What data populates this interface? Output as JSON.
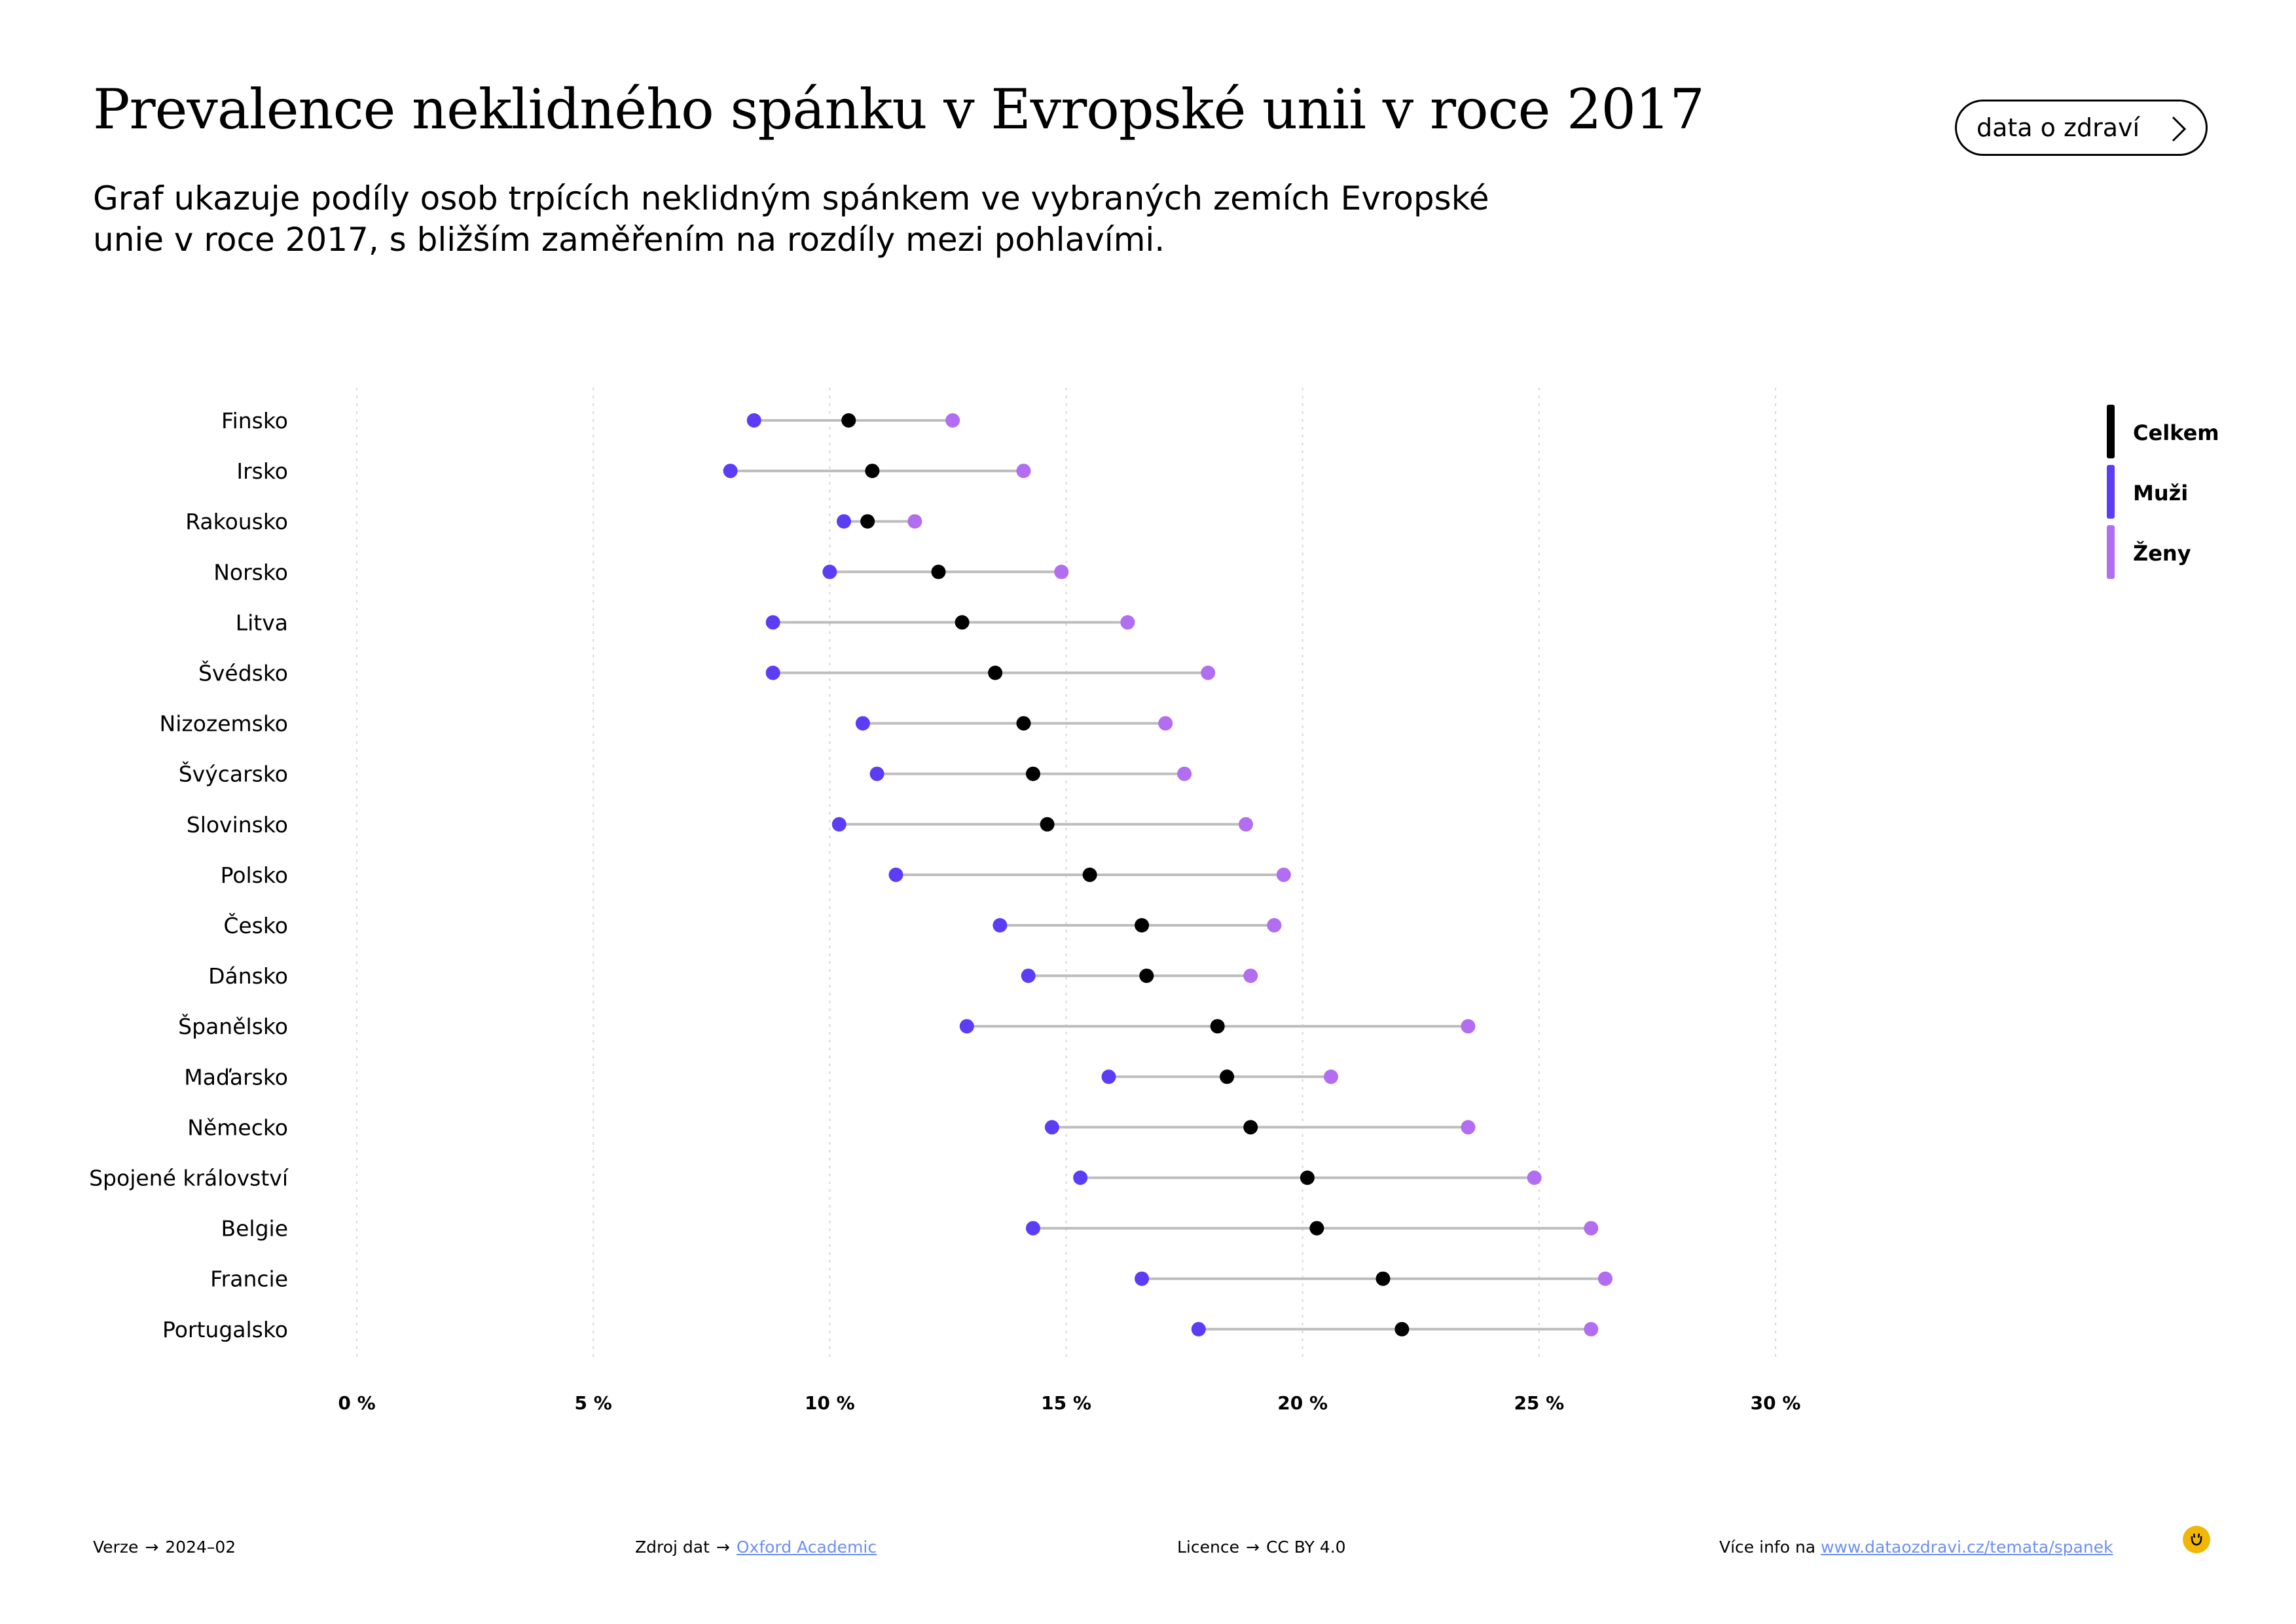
{
  "header": {
    "title": "Prevalence neklidného spánku v Evropské unii v roce 2017",
    "subtitle": "Graf ukazuje podíly osob trpících neklidným spánkem ve vybraných zemích Evropské unie v roce 2017, s bližším zaměřením na rozdíly mezi pohlavími.",
    "button_label": "data o zdraví"
  },
  "chart_data": {
    "type": "scatter",
    "subtype": "dumbbell",
    "title": "Prevalence neklidného spánku v Evropské unii v roce 2017",
    "xlabel": "",
    "ylabel": "",
    "xlim": [
      0,
      30
    ],
    "xticks": [
      0,
      5,
      10,
      15,
      20,
      25,
      30
    ],
    "xtick_labels": [
      "0 %",
      "5 %",
      "10 %",
      "15 %",
      "20 %",
      "25 %",
      "30 %"
    ],
    "grid": "vertical dotted",
    "legend_position": "top-right",
    "categories": [
      "Finsko",
      "Irsko",
      "Rakousko",
      "Norsko",
      "Litva",
      "Švédsko",
      "Nizozemsko",
      "Švýcarsko",
      "Slovinsko",
      "Polsko",
      "Česko",
      "Dánsko",
      "Španělsko",
      "Maďarsko",
      "Německo",
      "Spojené království",
      "Belgie",
      "Francie",
      "Portugalsko"
    ],
    "series": [
      {
        "name": "Celkem",
        "color": "#000000",
        "values": [
          10.4,
          10.9,
          10.8,
          12.3,
          12.8,
          13.5,
          14.1,
          14.3,
          14.6,
          15.5,
          16.6,
          16.7,
          18.2,
          18.4,
          18.9,
          20.1,
          20.3,
          21.7,
          22.1
        ]
      },
      {
        "name": "Muži",
        "color": "#5b3df5",
        "values": [
          8.4,
          7.9,
          10.3,
          10.0,
          8.8,
          8.8,
          10.7,
          11.0,
          10.2,
          11.4,
          13.6,
          14.2,
          12.9,
          15.9,
          14.7,
          15.3,
          14.3,
          16.6,
          17.8
        ]
      },
      {
        "name": "Ženy",
        "color": "#b36df0",
        "values": [
          12.6,
          14.1,
          11.8,
          14.9,
          16.3,
          18.0,
          17.1,
          17.5,
          18.8,
          19.6,
          19.4,
          18.9,
          23.5,
          20.6,
          23.5,
          24.9,
          26.1,
          26.4,
          26.1
        ]
      }
    ]
  },
  "footer": {
    "version_label": "Verze",
    "version_value": "2024–02",
    "source_label": "Zdroj dat",
    "source_link": "Oxford Academic",
    "license_label": "Licence",
    "license_value": "CC BY 4.0",
    "more_label": "Více info na",
    "more_link": "www.dataozdravi.cz/temata/spanek"
  }
}
